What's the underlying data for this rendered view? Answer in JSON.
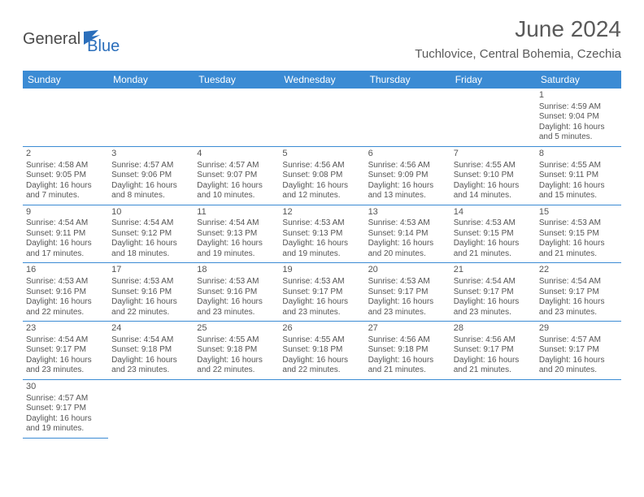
{
  "logo": {
    "general": "General",
    "blue": "Blue"
  },
  "title": "June 2024",
  "location": "Tuchlovice, Central Bohemia, Czechia",
  "accent_color": "#3b8bd4",
  "days": [
    "Sunday",
    "Monday",
    "Tuesday",
    "Wednesday",
    "Thursday",
    "Friday",
    "Saturday"
  ],
  "cells": [
    {
      "n": "1",
      "sr": "Sunrise: 4:59 AM",
      "ss": "Sunset: 9:04 PM",
      "dl1": "Daylight: 16 hours",
      "dl2": "and 5 minutes."
    },
    {
      "n": "2",
      "sr": "Sunrise: 4:58 AM",
      "ss": "Sunset: 9:05 PM",
      "dl1": "Daylight: 16 hours",
      "dl2": "and 7 minutes."
    },
    {
      "n": "3",
      "sr": "Sunrise: 4:57 AM",
      "ss": "Sunset: 9:06 PM",
      "dl1": "Daylight: 16 hours",
      "dl2": "and 8 minutes."
    },
    {
      "n": "4",
      "sr": "Sunrise: 4:57 AM",
      "ss": "Sunset: 9:07 PM",
      "dl1": "Daylight: 16 hours",
      "dl2": "and 10 minutes."
    },
    {
      "n": "5",
      "sr": "Sunrise: 4:56 AM",
      "ss": "Sunset: 9:08 PM",
      "dl1": "Daylight: 16 hours",
      "dl2": "and 12 minutes."
    },
    {
      "n": "6",
      "sr": "Sunrise: 4:56 AM",
      "ss": "Sunset: 9:09 PM",
      "dl1": "Daylight: 16 hours",
      "dl2": "and 13 minutes."
    },
    {
      "n": "7",
      "sr": "Sunrise: 4:55 AM",
      "ss": "Sunset: 9:10 PM",
      "dl1": "Daylight: 16 hours",
      "dl2": "and 14 minutes."
    },
    {
      "n": "8",
      "sr": "Sunrise: 4:55 AM",
      "ss": "Sunset: 9:11 PM",
      "dl1": "Daylight: 16 hours",
      "dl2": "and 15 minutes."
    },
    {
      "n": "9",
      "sr": "Sunrise: 4:54 AM",
      "ss": "Sunset: 9:11 PM",
      "dl1": "Daylight: 16 hours",
      "dl2": "and 17 minutes."
    },
    {
      "n": "10",
      "sr": "Sunrise: 4:54 AM",
      "ss": "Sunset: 9:12 PM",
      "dl1": "Daylight: 16 hours",
      "dl2": "and 18 minutes."
    },
    {
      "n": "11",
      "sr": "Sunrise: 4:54 AM",
      "ss": "Sunset: 9:13 PM",
      "dl1": "Daylight: 16 hours",
      "dl2": "and 19 minutes."
    },
    {
      "n": "12",
      "sr": "Sunrise: 4:53 AM",
      "ss": "Sunset: 9:13 PM",
      "dl1": "Daylight: 16 hours",
      "dl2": "and 19 minutes."
    },
    {
      "n": "13",
      "sr": "Sunrise: 4:53 AM",
      "ss": "Sunset: 9:14 PM",
      "dl1": "Daylight: 16 hours",
      "dl2": "and 20 minutes."
    },
    {
      "n": "14",
      "sr": "Sunrise: 4:53 AM",
      "ss": "Sunset: 9:15 PM",
      "dl1": "Daylight: 16 hours",
      "dl2": "and 21 minutes."
    },
    {
      "n": "15",
      "sr": "Sunrise: 4:53 AM",
      "ss": "Sunset: 9:15 PM",
      "dl1": "Daylight: 16 hours",
      "dl2": "and 21 minutes."
    },
    {
      "n": "16",
      "sr": "Sunrise: 4:53 AM",
      "ss": "Sunset: 9:16 PM",
      "dl1": "Daylight: 16 hours",
      "dl2": "and 22 minutes."
    },
    {
      "n": "17",
      "sr": "Sunrise: 4:53 AM",
      "ss": "Sunset: 9:16 PM",
      "dl1": "Daylight: 16 hours",
      "dl2": "and 22 minutes."
    },
    {
      "n": "18",
      "sr": "Sunrise: 4:53 AM",
      "ss": "Sunset: 9:16 PM",
      "dl1": "Daylight: 16 hours",
      "dl2": "and 23 minutes."
    },
    {
      "n": "19",
      "sr": "Sunrise: 4:53 AM",
      "ss": "Sunset: 9:17 PM",
      "dl1": "Daylight: 16 hours",
      "dl2": "and 23 minutes."
    },
    {
      "n": "20",
      "sr": "Sunrise: 4:53 AM",
      "ss": "Sunset: 9:17 PM",
      "dl1": "Daylight: 16 hours",
      "dl2": "and 23 minutes."
    },
    {
      "n": "21",
      "sr": "Sunrise: 4:54 AM",
      "ss": "Sunset: 9:17 PM",
      "dl1": "Daylight: 16 hours",
      "dl2": "and 23 minutes."
    },
    {
      "n": "22",
      "sr": "Sunrise: 4:54 AM",
      "ss": "Sunset: 9:17 PM",
      "dl1": "Daylight: 16 hours",
      "dl2": "and 23 minutes."
    },
    {
      "n": "23",
      "sr": "Sunrise: 4:54 AM",
      "ss": "Sunset: 9:17 PM",
      "dl1": "Daylight: 16 hours",
      "dl2": "and 23 minutes."
    },
    {
      "n": "24",
      "sr": "Sunrise: 4:54 AM",
      "ss": "Sunset: 9:18 PM",
      "dl1": "Daylight: 16 hours",
      "dl2": "and 23 minutes."
    },
    {
      "n": "25",
      "sr": "Sunrise: 4:55 AM",
      "ss": "Sunset: 9:18 PM",
      "dl1": "Daylight: 16 hours",
      "dl2": "and 22 minutes."
    },
    {
      "n": "26",
      "sr": "Sunrise: 4:55 AM",
      "ss": "Sunset: 9:18 PM",
      "dl1": "Daylight: 16 hours",
      "dl2": "and 22 minutes."
    },
    {
      "n": "27",
      "sr": "Sunrise: 4:56 AM",
      "ss": "Sunset: 9:18 PM",
      "dl1": "Daylight: 16 hours",
      "dl2": "and 21 minutes."
    },
    {
      "n": "28",
      "sr": "Sunrise: 4:56 AM",
      "ss": "Sunset: 9:17 PM",
      "dl1": "Daylight: 16 hours",
      "dl2": "and 21 minutes."
    },
    {
      "n": "29",
      "sr": "Sunrise: 4:57 AM",
      "ss": "Sunset: 9:17 PM",
      "dl1": "Daylight: 16 hours",
      "dl2": "and 20 minutes."
    },
    {
      "n": "30",
      "sr": "Sunrise: 4:57 AM",
      "ss": "Sunset: 9:17 PM",
      "dl1": "Daylight: 16 hours",
      "dl2": "and 19 minutes."
    }
  ]
}
